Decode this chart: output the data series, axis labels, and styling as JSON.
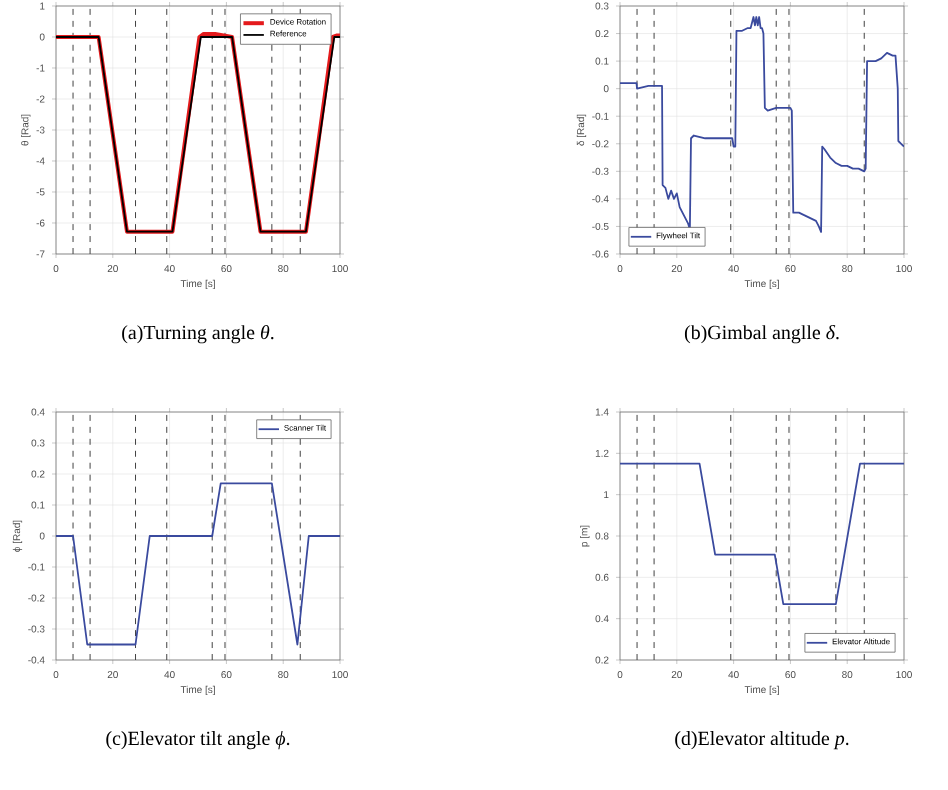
{
  "chart_data": [
    {
      "type": "line",
      "title": "(a)Turning angle *θ*.",
      "xlabel": "Time [s]",
      "ylabel": "θ [Rad]",
      "xlim": [
        0,
        100
      ],
      "ylim": [
        -7,
        1
      ],
      "xticks": [
        0,
        20,
        40,
        60,
        80,
        100
      ],
      "yticks": [
        -7,
        -6,
        -5,
        -4,
        -3,
        -2,
        -1,
        0,
        1
      ],
      "grid": true,
      "legend": "top right",
      "series": [
        {
          "name": "Device Rotation",
          "color": "#e41a1c",
          "x": [
            0,
            15,
            25,
            41,
            50.5,
            52,
            56,
            62,
            72,
            88,
            97.5,
            99,
            100
          ],
          "values": [
            0,
            0,
            -6.28,
            -6.28,
            0,
            0.1,
            0.1,
            0,
            -6.28,
            -6.28,
            0,
            0.05,
            0.05
          ]
        },
        {
          "name": "Reference",
          "color": "#000000",
          "x": [
            0,
            15,
            25,
            41,
            51,
            62,
            72,
            88,
            98,
            100
          ],
          "values": [
            0,
            0,
            -6.28,
            -6.28,
            0,
            0,
            -6.28,
            -6.28,
            0,
            0
          ]
        }
      ],
      "ref_lines": [
        {
          "axis": "x",
          "value": 6,
          "line_style": "dashed"
        },
        {
          "axis": "x",
          "value": 12,
          "line_style": "dashed"
        },
        {
          "axis": "x",
          "value": 28,
          "line_style": "dashed"
        },
        {
          "axis": "x",
          "value": 39,
          "line_style": "dashed"
        },
        {
          "axis": "x",
          "value": 55,
          "line_style": "dashed"
        },
        {
          "axis": "x",
          "value": 59.5,
          "line_style": "dashed"
        },
        {
          "axis": "x",
          "value": 76,
          "line_style": "dashed"
        },
        {
          "axis": "x",
          "value": 86,
          "line_style": "dashed"
        }
      ]
    },
    {
      "type": "line",
      "title": "(b)Gimbal anglle *δ*.",
      "xlabel": "Time [s]",
      "ylabel": "δ [Rad]",
      "xlim": [
        0,
        100
      ],
      "ylim": [
        -0.6,
        0.3
      ],
      "xticks": [
        0,
        20,
        40,
        60,
        80,
        100
      ],
      "yticks": [
        -0.6,
        -0.5,
        -0.4,
        -0.3,
        -0.2,
        -0.1,
        0,
        0.1,
        0.2,
        0.3
      ],
      "grid": true,
      "legend": "bottom left",
      "series": [
        {
          "name": "Flywheel Tilt",
          "color": "#3a4a9e",
          "x": [
            0,
            5.8,
            6,
            10,
            14.8,
            15,
            16,
            17,
            18,
            19,
            20,
            21,
            22,
            23,
            24,
            24.6,
            25,
            26,
            30,
            35,
            39.5,
            40,
            40.6,
            41,
            43,
            45,
            46,
            47,
            47.5,
            48,
            48.5,
            49,
            49.5,
            50,
            50.5,
            51,
            52,
            55,
            60,
            60.5,
            61,
            63,
            65,
            67,
            69,
            70,
            70.8,
            71.2,
            72,
            74,
            76,
            78,
            80,
            82,
            84,
            86,
            86.5,
            87,
            90,
            92,
            94,
            96,
            97,
            97.8,
            98,
            99,
            100
          ],
          "values": [
            0.02,
            0.02,
            0,
            0.01,
            0.01,
            -0.35,
            -0.36,
            -0.4,
            -0.37,
            -0.4,
            -0.38,
            -0.43,
            -0.45,
            -0.47,
            -0.49,
            -0.51,
            -0.18,
            -0.17,
            -0.18,
            -0.18,
            -0.18,
            -0.21,
            -0.21,
            0.21,
            0.21,
            0.22,
            0.22,
            0.26,
            0.23,
            0.26,
            0.23,
            0.26,
            0.22,
            0.22,
            0.2,
            -0.07,
            -0.08,
            -0.07,
            -0.07,
            -0.08,
            -0.45,
            -0.45,
            -0.46,
            -0.47,
            -0.48,
            -0.5,
            -0.52,
            -0.21,
            -0.22,
            -0.25,
            -0.27,
            -0.28,
            -0.28,
            -0.29,
            -0.29,
            -0.3,
            -0.29,
            0.1,
            0.1,
            0.11,
            0.13,
            0.12,
            0.12,
            0.0,
            -0.19,
            -0.2,
            -0.21
          ]
        }
      ],
      "ref_lines": [
        {
          "axis": "x",
          "value": 6,
          "line_style": "dashed"
        },
        {
          "axis": "x",
          "value": 12,
          "line_style": "dashed"
        },
        {
          "axis": "x",
          "value": 39,
          "line_style": "dashed"
        },
        {
          "axis": "x",
          "value": 55,
          "line_style": "dashed"
        },
        {
          "axis": "x",
          "value": 59.5,
          "line_style": "dashed"
        },
        {
          "axis": "x",
          "value": 86,
          "line_style": "dashed"
        }
      ]
    },
    {
      "type": "line",
      "title": "(c)Elevator tilt angle *ϕ*.",
      "xlabel": "Time [s]",
      "ylabel": "ϕ [Rad]",
      "xlim": [
        0,
        100
      ],
      "ylim": [
        -0.4,
        0.4
      ],
      "xticks": [
        0,
        20,
        40,
        60,
        80,
        100
      ],
      "yticks": [
        -0.4,
        -0.3,
        -0.2,
        -0.1,
        0,
        0.1,
        0.2,
        0.3,
        0.4
      ],
      "grid": true,
      "legend": "top right",
      "series": [
        {
          "name": "Scanner Tilt",
          "color": "#3a4a9e",
          "x": [
            0,
            6,
            11,
            28,
            33,
            55,
            58,
            76,
            85,
            89,
            100
          ],
          "values": [
            0,
            0,
            -0.35,
            -0.35,
            0,
            0,
            0.17,
            0.17,
            -0.35,
            0,
            0
          ]
        }
      ],
      "ref_lines": [
        {
          "axis": "x",
          "value": 6,
          "line_style": "dashed"
        },
        {
          "axis": "x",
          "value": 12,
          "line_style": "dashed"
        },
        {
          "axis": "x",
          "value": 28,
          "line_style": "dashed"
        },
        {
          "axis": "x",
          "value": 39,
          "line_style": "dashed"
        },
        {
          "axis": "x",
          "value": 55,
          "line_style": "dashed"
        },
        {
          "axis": "x",
          "value": 59.5,
          "line_style": "dashed"
        },
        {
          "axis": "x",
          "value": 76,
          "line_style": "dashed"
        },
        {
          "axis": "x",
          "value": 86,
          "line_style": "dashed"
        }
      ]
    },
    {
      "type": "line",
      "title": "(d)Elevator altitude *p*.",
      "xlabel": "Time [s]",
      "ylabel": "p [m]",
      "xlim": [
        0,
        100
      ],
      "ylim": [
        0.2,
        1.4
      ],
      "xticks": [
        0,
        20,
        40,
        60,
        80,
        100
      ],
      "yticks": [
        0.2,
        0.4,
        0.6,
        0.8,
        1,
        1.2,
        1.4
      ],
      "grid": true,
      "legend": "bottom right",
      "series": [
        {
          "name": "Elevator Altitude",
          "color": "#3a4a9e",
          "x": [
            0,
            28,
            33.5,
            54.5,
            57.5,
            76,
            84.5,
            100
          ],
          "values": [
            1.15,
            1.15,
            0.71,
            0.71,
            0.47,
            0.47,
            1.15,
            1.15
          ]
        }
      ],
      "ref_lines": [
        {
          "axis": "x",
          "value": 6,
          "line_style": "dashed"
        },
        {
          "axis": "x",
          "value": 12,
          "line_style": "dashed"
        },
        {
          "axis": "x",
          "value": 39,
          "line_style": "dashed"
        },
        {
          "axis": "x",
          "value": 55,
          "line_style": "dashed"
        },
        {
          "axis": "x",
          "value": 59.5,
          "line_style": "dashed"
        },
        {
          "axis": "x",
          "value": 76,
          "line_style": "dashed"
        },
        {
          "axis": "x",
          "value": 86,
          "line_style": "dashed"
        }
      ]
    }
  ]
}
